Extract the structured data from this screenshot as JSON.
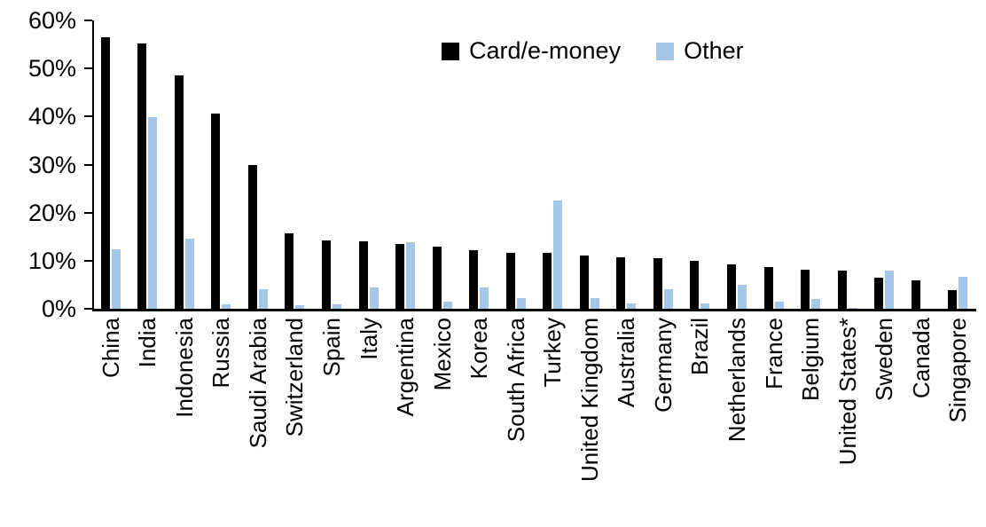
{
  "chart_data": {
    "type": "bar",
    "title": "",
    "xlabel": "",
    "ylabel": "",
    "ylim": [
      0,
      60
    ],
    "ytick_step": 10,
    "ytick_labels": [
      "0%",
      "10%",
      "20%",
      "30%",
      "40%",
      "50%",
      "60%"
    ],
    "grid": false,
    "legend_position": "top-center",
    "categories": [
      "China",
      "India",
      "Indonesia",
      "Russia",
      "Saudi Arabia",
      "Switzerland",
      "Spain",
      "Italy",
      "Argentina",
      "Mexico",
      "Korea",
      "South Africa",
      "Turkey",
      "United Kingdom",
      "Australia",
      "Germany",
      "Brazil",
      "Netherlands",
      "France",
      "Belgium",
      "United States*",
      "Sweden",
      "Canada",
      "Singapore"
    ],
    "series": [
      {
        "name": "Card/e-money",
        "color": "#000000",
        "values": [
          56.5,
          55.2,
          48.5,
          40.7,
          30.0,
          15.7,
          14.3,
          14.0,
          13.4,
          12.9,
          12.1,
          11.7,
          11.6,
          11.1,
          10.8,
          10.5,
          10.0,
          9.2,
          8.7,
          8.2,
          7.9,
          6.5,
          5.9,
          3.9
        ]
      },
      {
        "name": "Other",
        "color": "#A4C7E8",
        "values": [
          12.3,
          39.8,
          14.5,
          1.0,
          4.0,
          0.7,
          1.0,
          4.5,
          13.9,
          1.4,
          4.5,
          2.3,
          22.6,
          2.2,
          1.1,
          4.0,
          1.2,
          4.9,
          1.5,
          2.0,
          0.2,
          8.0,
          0.0,
          6.6
        ]
      }
    ]
  }
}
